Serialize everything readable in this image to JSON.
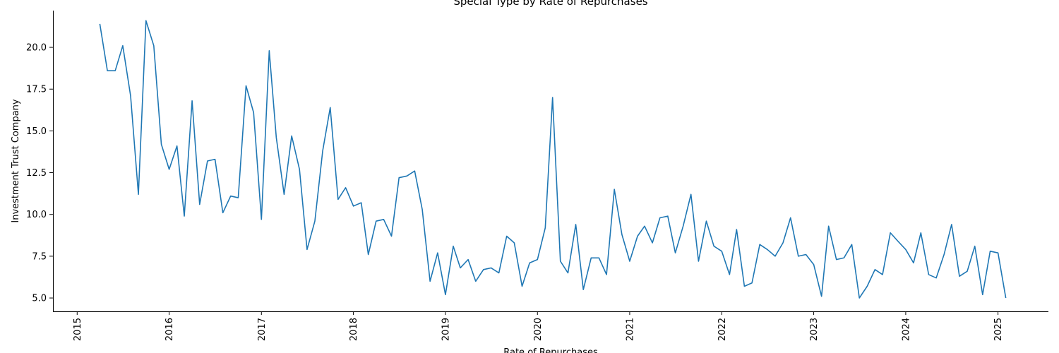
{
  "chart_data": {
    "type": "line",
    "title": "Special Type by Rate of Repurchases",
    "xlabel": "Rate of Repurchases",
    "ylabel": "Investment Trust Company",
    "xlim": [
      "2014-09-27",
      "2025-07-20"
    ],
    "ylim": [
      4.2,
      22.2
    ],
    "x_ticks": [
      "2015",
      "2016",
      "2017",
      "2018",
      "2019",
      "2020",
      "2021",
      "2022",
      "2023",
      "2024",
      "2025"
    ],
    "y_ticks": [
      "5.0",
      "7.5",
      "10.0",
      "12.5",
      "15.0",
      "17.5",
      "20.0"
    ],
    "grid": false,
    "legend": "none",
    "color": "#1f77b4",
    "series": [
      {
        "x": [
          "2015-04-01",
          "2015-05-01",
          "2015-06-01",
          "2015-07-01",
          "2015-08-01",
          "2015-09-01",
          "2015-10-01",
          "2015-11-01",
          "2015-12-01",
          "2016-01-01",
          "2016-02-01",
          "2016-03-01",
          "2016-04-01",
          "2016-05-01",
          "2016-06-01",
          "2016-07-01",
          "2016-08-01",
          "2016-09-01",
          "2016-10-01",
          "2016-11-01",
          "2016-12-01",
          "2017-01-01",
          "2017-02-01",
          "2017-03-01",
          "2017-04-01",
          "2017-05-01",
          "2017-06-01",
          "2017-07-01",
          "2017-08-01",
          "2017-09-01",
          "2017-10-01",
          "2017-11-01",
          "2017-12-01",
          "2018-01-01",
          "2018-02-01",
          "2018-03-01",
          "2018-04-01",
          "2018-05-01",
          "2018-06-01",
          "2018-07-01",
          "2018-08-01",
          "2018-09-01",
          "2018-10-01",
          "2018-11-01",
          "2018-12-01",
          "2019-01-01",
          "2019-02-01",
          "2019-03-01",
          "2019-04-01",
          "2019-05-01",
          "2019-06-01",
          "2019-07-01",
          "2019-08-01",
          "2019-09-01",
          "2019-10-01",
          "2019-11-01",
          "2019-12-01",
          "2020-01-01",
          "2020-02-01",
          "2020-03-01",
          "2020-04-01",
          "2020-05-01",
          "2020-06-01",
          "2020-07-01",
          "2020-08-01",
          "2020-09-01",
          "2020-10-01",
          "2020-11-01",
          "2020-12-01",
          "2021-01-01",
          "2021-02-01",
          "2021-03-01",
          "2021-04-01",
          "2021-05-01",
          "2021-06-01",
          "2021-07-01",
          "2021-08-01",
          "2021-09-01",
          "2021-10-01",
          "2021-11-01",
          "2021-12-01",
          "2022-01-01",
          "2022-02-01",
          "2022-03-01",
          "2022-04-01",
          "2022-05-01",
          "2022-06-01",
          "2022-07-01",
          "2022-08-01",
          "2022-09-01",
          "2022-10-01",
          "2022-11-01",
          "2022-12-01",
          "2023-01-01",
          "2023-02-01",
          "2023-03-01",
          "2023-04-01",
          "2023-05-01",
          "2023-06-01",
          "2023-07-01",
          "2023-08-01",
          "2023-09-01",
          "2023-10-01",
          "2023-11-01",
          "2023-12-01",
          "2024-01-01",
          "2024-02-01",
          "2024-03-01",
          "2024-04-01",
          "2024-05-01",
          "2024-06-01",
          "2024-07-01",
          "2024-08-01",
          "2024-09-01",
          "2024-10-01",
          "2024-11-01",
          "2024-12-01",
          "2025-01-01",
          "2025-02-01"
        ],
        "y": [
          21.4,
          18.6,
          18.6,
          20.1,
          17.1,
          11.2,
          21.6,
          20.1,
          14.2,
          12.7,
          14.1,
          9.9,
          16.8,
          10.6,
          13.2,
          13.3,
          10.1,
          11.1,
          11.0,
          17.7,
          16.1,
          9.7,
          19.8,
          14.6,
          11.2,
          14.7,
          12.7,
          7.9,
          9.6,
          13.8,
          16.4,
          10.9,
          11.6,
          10.5,
          10.7,
          7.6,
          9.6,
          9.7,
          8.7,
          12.2,
          12.3,
          12.6,
          10.3,
          6.0,
          7.7,
          5.2,
          8.1,
          6.8,
          7.3,
          6.0,
          6.7,
          6.8,
          6.5,
          8.7,
          8.3,
          5.7,
          7.1,
          7.3,
          9.2,
          17.0,
          7.2,
          6.5,
          9.4,
          5.5,
          7.4,
          7.4,
          6.4,
          11.5,
          8.8,
          7.2,
          8.7,
          9.3,
          8.3,
          9.8,
          9.9,
          7.7,
          9.3,
          11.2,
          7.2,
          9.6,
          8.1,
          7.8,
          6.4,
          9.1,
          5.7,
          5.9,
          8.2,
          7.9,
          7.5,
          8.3,
          9.8,
          7.5,
          7.6,
          7.0,
          5.1,
          9.3,
          7.3,
          7.4,
          8.2,
          5.0,
          5.7,
          6.7,
          6.4,
          8.9,
          8.4,
          7.9,
          7.1,
          8.9,
          6.4,
          6.2,
          7.6,
          9.4,
          6.3,
          6.6,
          8.1,
          5.2,
          7.8,
          7.7,
          5.0
        ]
      }
    ]
  }
}
